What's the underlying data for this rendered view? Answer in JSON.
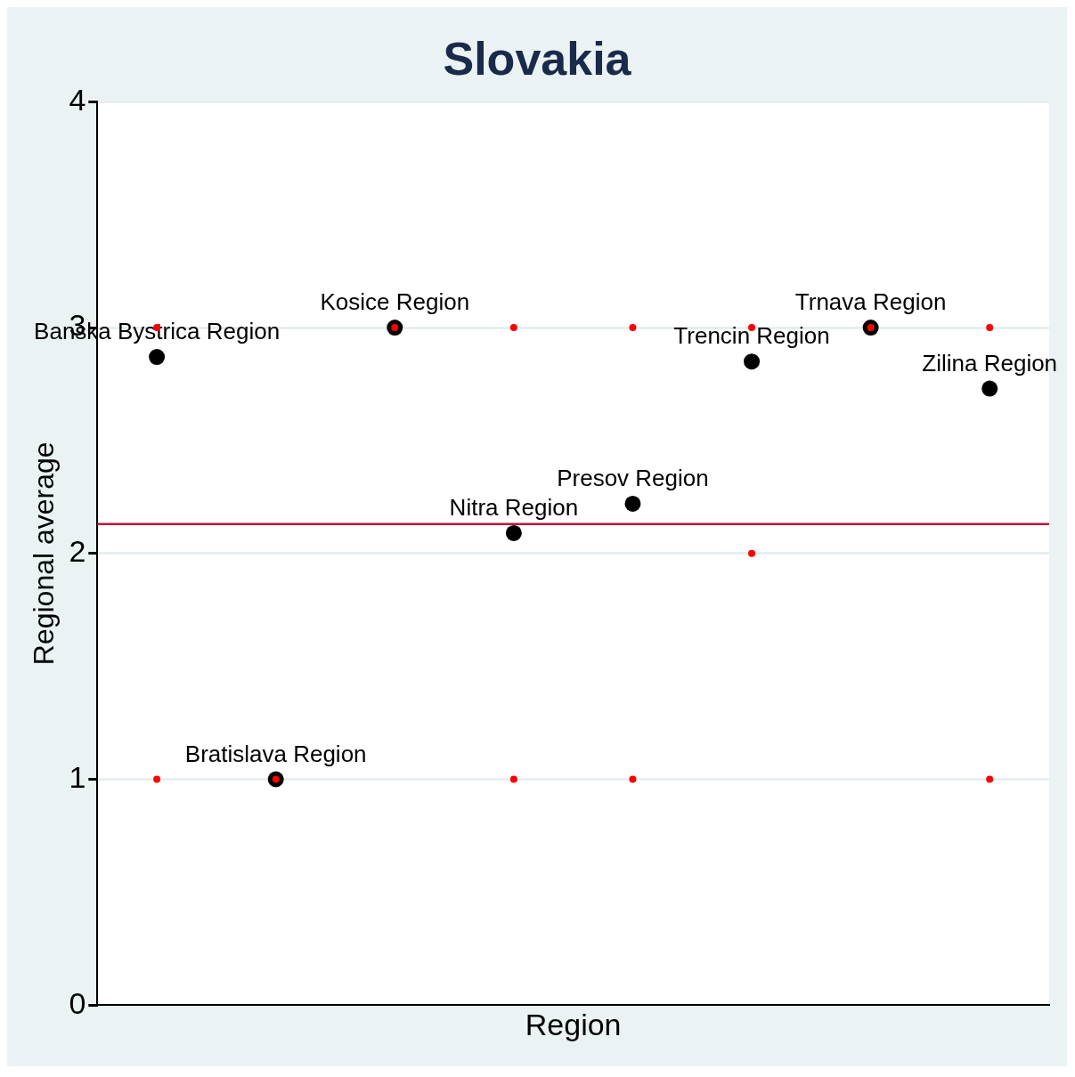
{
  "chart_data": {
    "type": "scatter",
    "title": "Slovakia",
    "xlabel": "Region",
    "ylabel": "Regional average",
    "categories": [
      null,
      null,
      null,
      null,
      null,
      null,
      null,
      null
    ],
    "ylim": [
      0,
      4
    ],
    "yticks": [
      0,
      1,
      2,
      3,
      4
    ],
    "grid": "y",
    "tick_labels": "y",
    "marker": "circle",
    "series": [
      {
        "color": "#000000",
        "values": [
          2.87,
          1,
          3,
          2.09,
          2.22,
          2.85,
          3,
          2.73
        ]
      },
      {
        "color": "#ff0000",
        "values": [
          3,
          null,
          3,
          3,
          3,
          3,
          3,
          3
        ]
      },
      {
        "color": "#ff0000",
        "values": [
          1,
          1,
          null,
          1,
          1,
          null,
          null,
          1
        ]
      },
      {
        "color": "#ff0000",
        "values": [
          null,
          null,
          null,
          null,
          null,
          2,
          null,
          null
        ]
      }
    ],
    "ref_lines": [
      {
        "axis": "y",
        "value": 2.13,
        "color": "#c0143c"
      }
    ],
    "annotations": [
      {
        "text": "Banska Bystrica Region",
        "y": 2.87
      },
      {
        "text": "Bratislava Region",
        "y": 1
      },
      {
        "text": "Kosice Region",
        "y": 3
      },
      {
        "text": "Nitra Region",
        "y": 2.09
      },
      {
        "text": "Presov Region",
        "y": 2.22
      },
      {
        "text": "Trencin Region",
        "y": 2.85
      },
      {
        "text": "Trnava Region",
        "y": 3
      },
      {
        "text": "Zilina Region",
        "y": 2.73
      }
    ]
  }
}
